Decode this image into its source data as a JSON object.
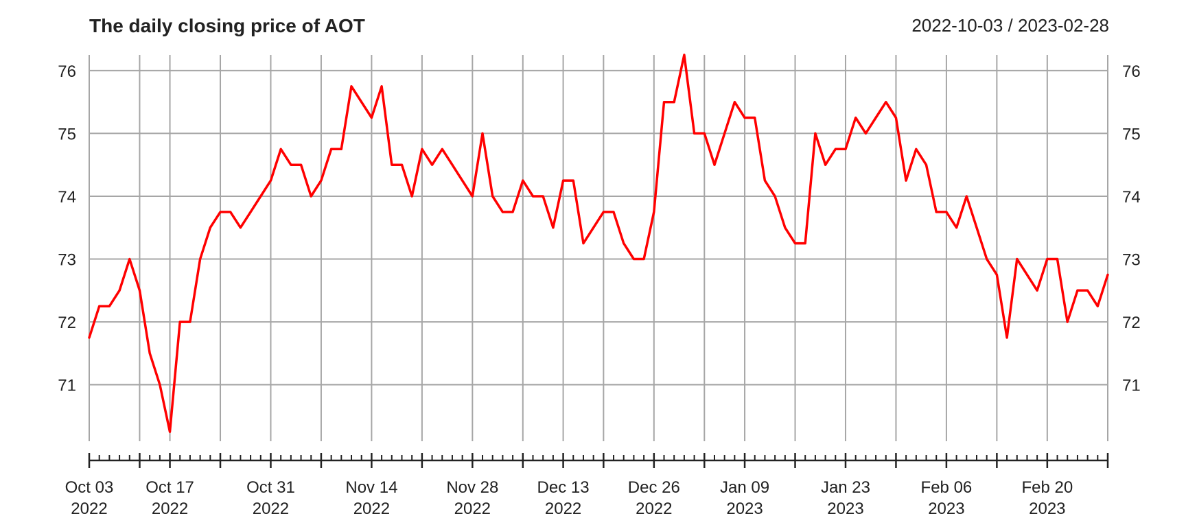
{
  "chart_data": {
    "type": "line",
    "title": "The daily closing price of AOT",
    "date_range_label": "2022-10-03 / 2023-02-28",
    "xlabel": "",
    "ylabel": "",
    "ylim": [
      70.1,
      76.25
    ],
    "y_ticks": [
      71,
      72,
      73,
      74,
      75,
      76
    ],
    "grid": true,
    "x_tick_labels": [
      {
        "date": "2022-10-03",
        "line1": "Oct 03",
        "line2": "2022"
      },
      {
        "date": "2022-10-17",
        "line1": "Oct 17",
        "line2": "2022"
      },
      {
        "date": "2022-10-31",
        "line1": "Oct 31",
        "line2": "2022"
      },
      {
        "date": "2022-11-14",
        "line1": "Nov 14",
        "line2": "2022"
      },
      {
        "date": "2022-11-28",
        "line1": "Nov 28",
        "line2": "2022"
      },
      {
        "date": "2022-12-13",
        "line1": "Dec 13",
        "line2": "2022"
      },
      {
        "date": "2022-12-26",
        "line1": "Dec 26",
        "line2": "2022"
      },
      {
        "date": "2023-01-09",
        "line1": "Jan 09",
        "line2": "2023"
      },
      {
        "date": "2023-01-23",
        "line1": "Jan 23",
        "line2": "2023"
      },
      {
        "date": "2023-02-06",
        "line1": "Feb 06",
        "line2": "2023"
      },
      {
        "date": "2023-02-20",
        "line1": "Feb 20",
        "line2": "2023"
      }
    ],
    "week_gridlines": [
      "2022-10-03",
      "2022-10-10",
      "2022-10-17",
      "2022-10-24",
      "2022-10-31",
      "2022-11-07",
      "2022-11-14",
      "2022-11-21",
      "2022-11-28",
      "2022-12-06",
      "2022-12-13",
      "2022-12-19",
      "2022-12-26",
      "2023-01-03",
      "2023-01-09",
      "2023-01-16",
      "2023-01-23",
      "2023-01-30",
      "2023-02-06",
      "2023-02-13",
      "2023-02-20",
      "2023-02-28"
    ],
    "series": [
      {
        "color": "#ff0000",
        "x": [
          "2022-10-03",
          "2022-10-04",
          "2022-10-05",
          "2022-10-06",
          "2022-10-07",
          "2022-10-10",
          "2022-10-11",
          "2022-10-12",
          "2022-10-17",
          "2022-10-18",
          "2022-10-19",
          "2022-10-20",
          "2022-10-21",
          "2022-10-24",
          "2022-10-25",
          "2022-10-26",
          "2022-10-27",
          "2022-10-28",
          "2022-10-31",
          "2022-11-01",
          "2022-11-02",
          "2022-11-03",
          "2022-11-04",
          "2022-11-07",
          "2022-11-08",
          "2022-11-09",
          "2022-11-10",
          "2022-11-11",
          "2022-11-14",
          "2022-11-15",
          "2022-11-16",
          "2022-11-17",
          "2022-11-18",
          "2022-11-21",
          "2022-11-22",
          "2022-11-23",
          "2022-11-24",
          "2022-11-25",
          "2022-11-28",
          "2022-11-29",
          "2022-11-30",
          "2022-12-01",
          "2022-12-02",
          "2022-12-06",
          "2022-12-07",
          "2022-12-08",
          "2022-12-09",
          "2022-12-13",
          "2022-12-14",
          "2022-12-15",
          "2022-12-16",
          "2022-12-19",
          "2022-12-20",
          "2022-12-21",
          "2022-12-22",
          "2022-12-23",
          "2022-12-26",
          "2022-12-27",
          "2022-12-28",
          "2022-12-29",
          "2022-12-30",
          "2023-01-03",
          "2023-01-04",
          "2023-01-05",
          "2023-01-06",
          "2023-01-09",
          "2023-01-10",
          "2023-01-11",
          "2023-01-12",
          "2023-01-13",
          "2023-01-16",
          "2023-01-17",
          "2023-01-18",
          "2023-01-19",
          "2023-01-20",
          "2023-01-23",
          "2023-01-24",
          "2023-01-25",
          "2023-01-26",
          "2023-01-27",
          "2023-01-30",
          "2023-01-31",
          "2023-02-01",
          "2023-02-02",
          "2023-02-03",
          "2023-02-06",
          "2023-02-07",
          "2023-02-08",
          "2023-02-09",
          "2023-02-10",
          "2023-02-13",
          "2023-02-14",
          "2023-02-15",
          "2023-02-16",
          "2023-02-17",
          "2023-02-20",
          "2023-02-21",
          "2023-02-22",
          "2023-02-23",
          "2023-02-24",
          "2023-02-27",
          "2023-02-28"
        ],
        "values": [
          71.75,
          72.25,
          72.25,
          72.5,
          73.0,
          72.5,
          71.5,
          71.0,
          70.25,
          72.0,
          72.0,
          73.0,
          73.5,
          73.75,
          73.75,
          73.5,
          73.75,
          74.0,
          74.25,
          74.75,
          74.5,
          74.5,
          74.0,
          74.25,
          74.75,
          74.75,
          75.75,
          75.5,
          75.25,
          75.75,
          74.5,
          74.5,
          74.0,
          74.75,
          74.5,
          74.75,
          74.5,
          74.25,
          74.0,
          75.0,
          74.0,
          73.75,
          73.75,
          74.25,
          74.0,
          74.0,
          73.5,
          74.25,
          74.25,
          73.25,
          73.5,
          73.75,
          73.75,
          73.25,
          73.0,
          73.0,
          73.75,
          75.5,
          75.5,
          76.25,
          75.0,
          75.0,
          74.5,
          75.0,
          75.5,
          75.25,
          75.25,
          74.25,
          74.0,
          73.5,
          73.25,
          73.25,
          75.0,
          74.5,
          74.75,
          74.75,
          75.25,
          75.0,
          75.25,
          75.5,
          75.25,
          74.25,
          74.75,
          74.5,
          73.75,
          73.75,
          73.5,
          74.0,
          73.5,
          73.0,
          72.75,
          71.75,
          73.0,
          72.75,
          72.5,
          73.0,
          73.0,
          72.0,
          72.5,
          72.5,
          72.25,
          72.75
        ]
      }
    ]
  }
}
